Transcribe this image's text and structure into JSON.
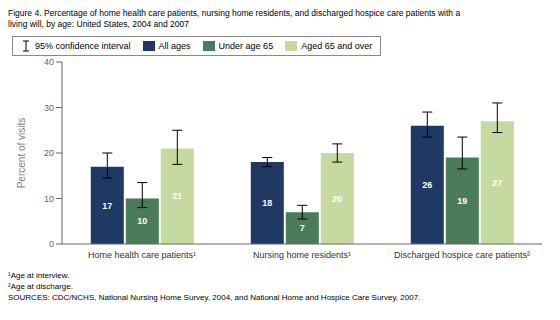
{
  "chart_data": {
    "type": "bar",
    "title": "Figure 4. Percentage of home health care patients, nursing home residents, and discharged hospice care patients with a\nliving will, by age: United States, 2004 and 2007",
    "ylabel": "Percent of visits",
    "categories": [
      "Home health care patients¹",
      "Nursing home residents¹",
      "Discharged hospice care patients²"
    ],
    "series": [
      {
        "name": "All ages",
        "color": "#1f3864",
        "values": [
          17,
          18,
          26
        ],
        "error_low": [
          2.5,
          1.0,
          2.5
        ],
        "error_high": [
          3.0,
          1.0,
          3.0
        ]
      },
      {
        "name": "Under age 65",
        "color": "#4a7c59",
        "values": [
          10,
          7,
          19
        ],
        "error_low": [
          2.0,
          1.5,
          2.5
        ],
        "error_high": [
          3.5,
          1.5,
          4.5
        ]
      },
      {
        "name": "Aged 65 and over",
        "color": "#c5d9a0",
        "values": [
          21,
          20,
          27
        ],
        "error_low": [
          3.5,
          2.0,
          2.5
        ],
        "error_high": [
          4.0,
          2.0,
          4.0
        ]
      }
    ],
    "error_label": "95% confidence interval",
    "ylim": [
      0,
      40
    ],
    "yticks": [
      0,
      10,
      20,
      30,
      40
    ],
    "grid": false,
    "legend": "upper left",
    "data_labels": true,
    "annotations": [
      "¹Age at interview.",
      "²Age at discharge.",
      "SOURCES: CDC/NCHS, National Nursing Home Survey, 2004, and National Home and Hospice Care Survey, 2007."
    ]
  }
}
